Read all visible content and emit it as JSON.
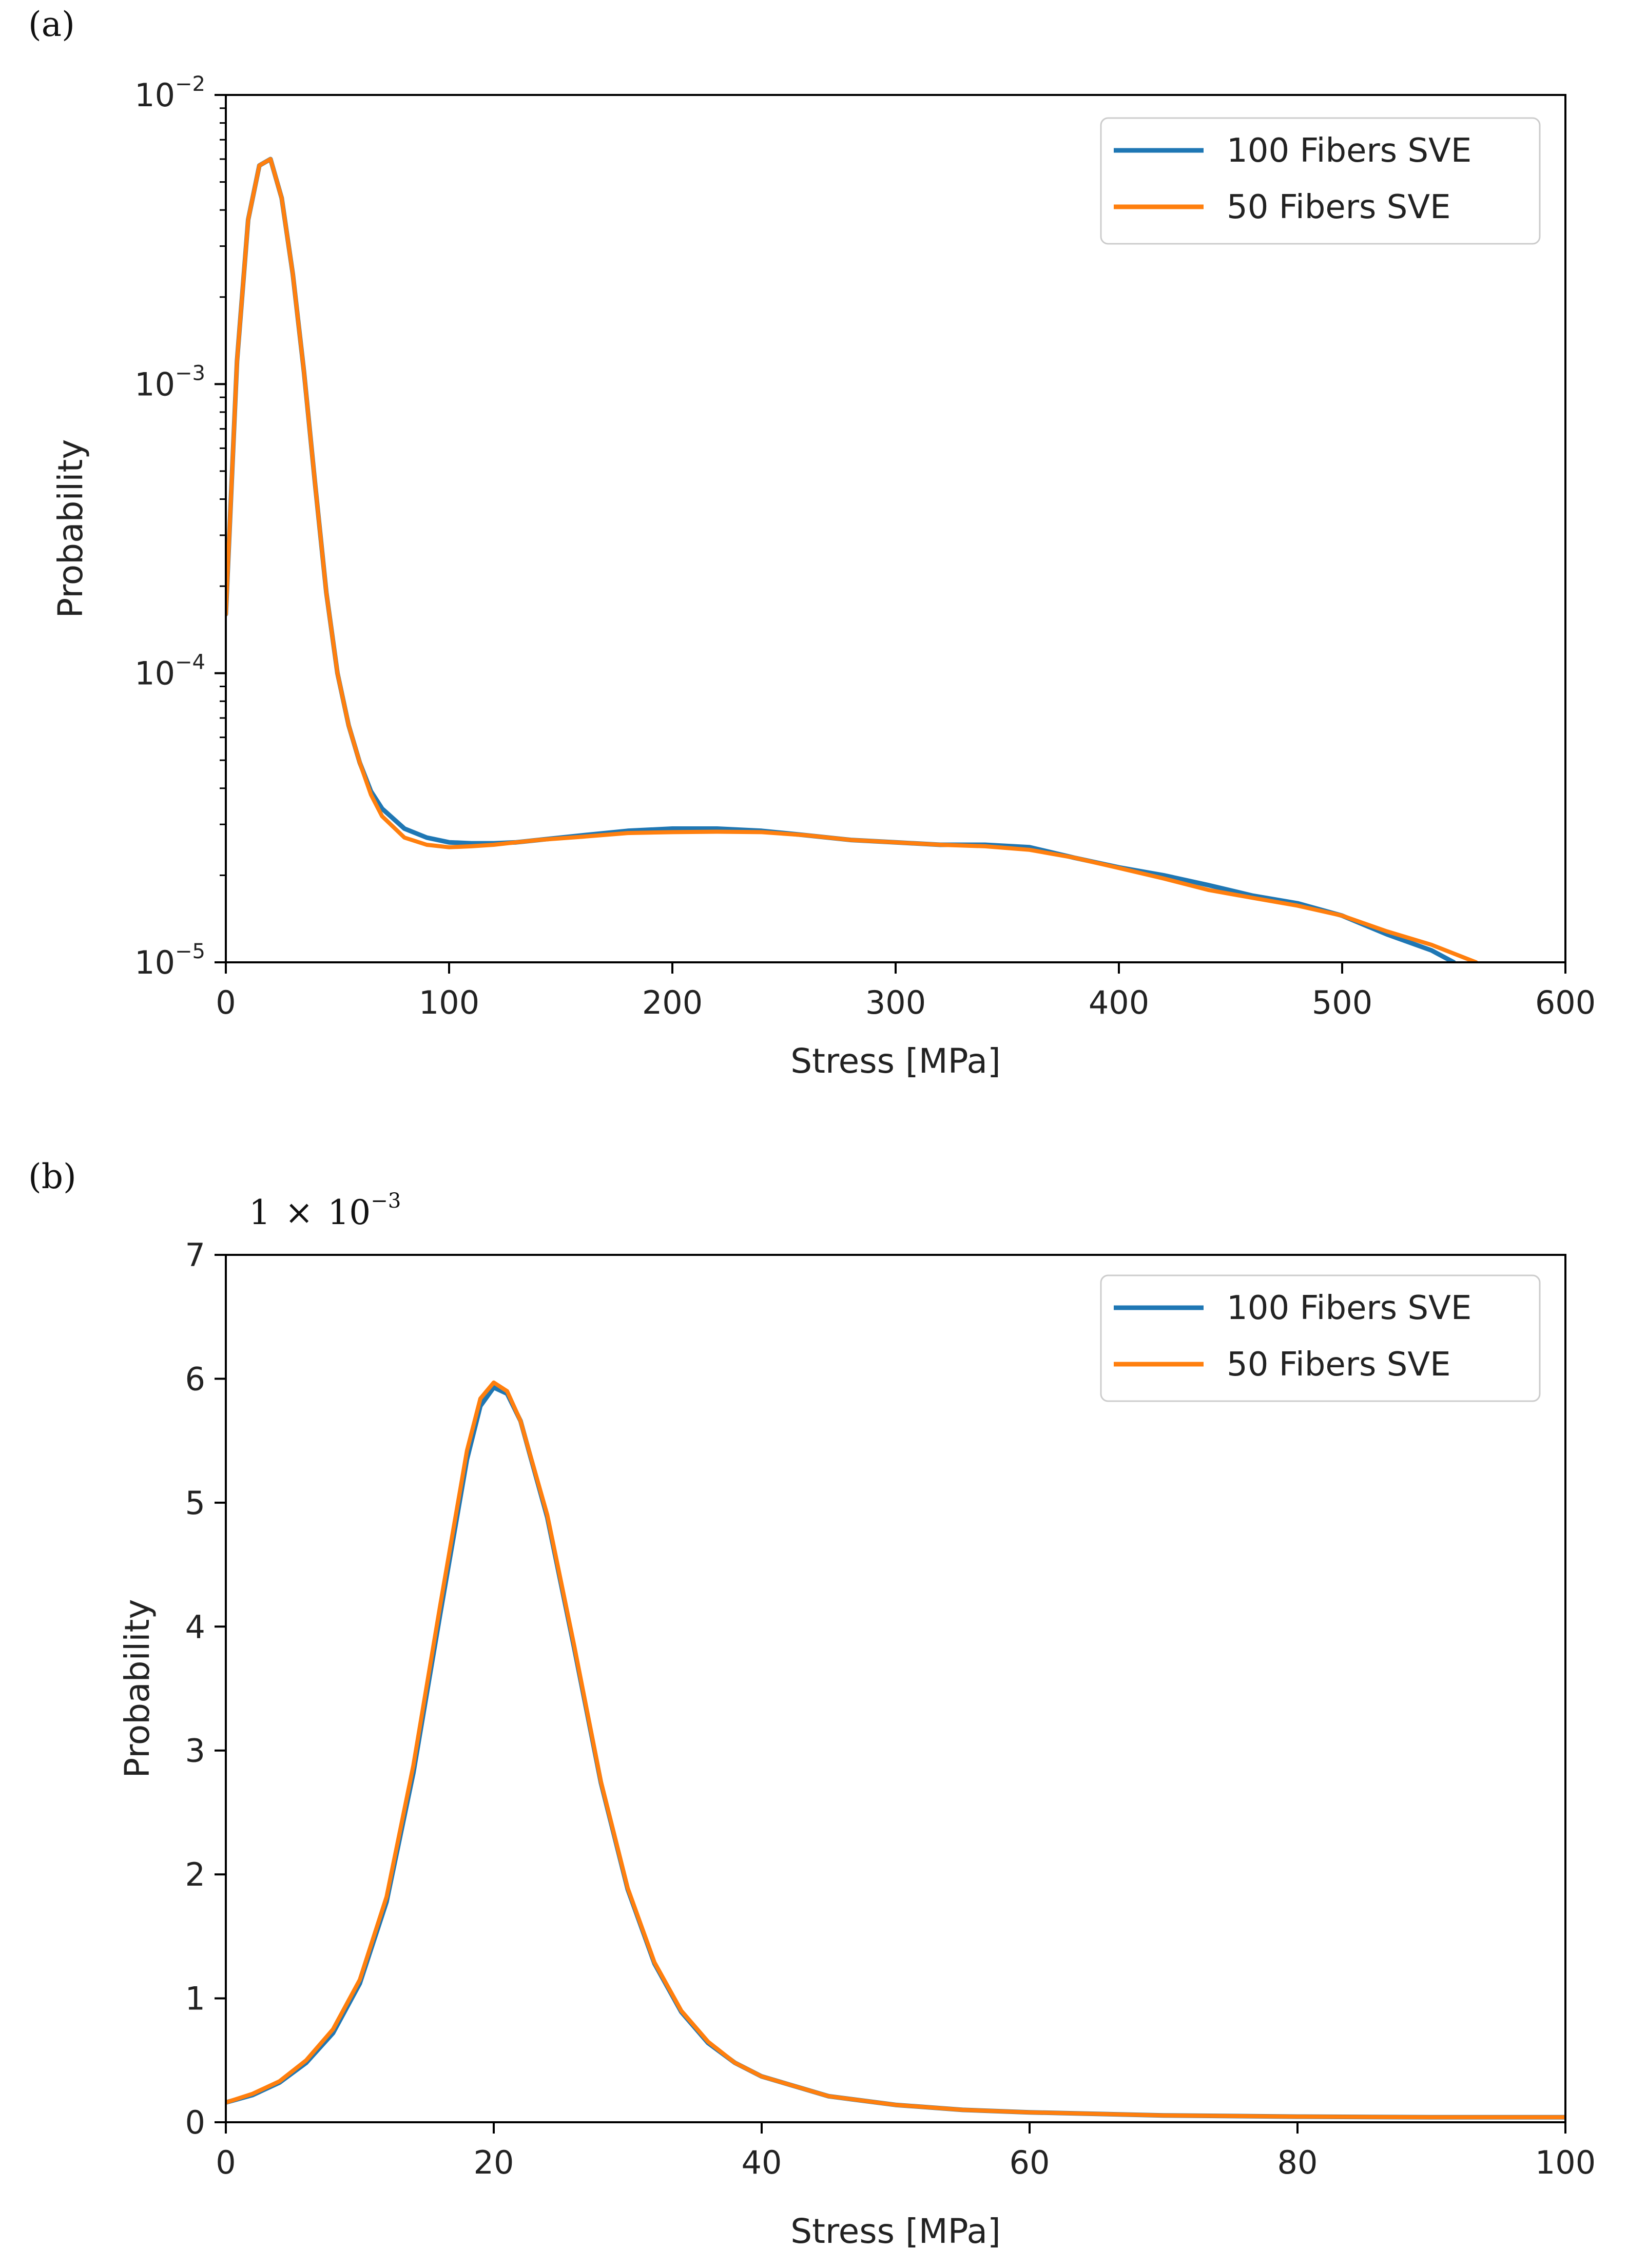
{
  "colors": {
    "series_100": "#1f77b4",
    "series_50": "#ff7f0e",
    "axis": "#000000"
  },
  "chart_data": [
    {
      "panel_label": "(a)",
      "type": "line",
      "xlabel": "Stress [MPa]",
      "ylabel": "Probability",
      "xlim": [
        0,
        600
      ],
      "yscale": "log",
      "ylim": [
        1e-05,
        0.01
      ],
      "xticks": [
        0,
        100,
        200,
        300,
        400,
        500,
        600
      ],
      "xtick_labels": [
        "0",
        "100",
        "200",
        "300",
        "400",
        "500",
        "600"
      ],
      "yticks": [
        1e-05,
        0.0001,
        0.001,
        0.01
      ],
      "ytick_labels": [
        {
          "base": "10",
          "exp": "−5"
        },
        {
          "base": "10",
          "exp": "−4"
        },
        {
          "base": "10",
          "exp": "−3"
        },
        {
          "base": "10",
          "exp": "−2"
        }
      ],
      "legend": {
        "placement": "top-right",
        "entries": [
          "100 Fibers SVE",
          "50 Fibers SVE"
        ]
      },
      "grid": false,
      "series": [
        {
          "name": "100 Fibers SVE",
          "x": [
            0,
            5,
            10,
            15,
            20,
            25,
            30,
            35,
            40,
            45,
            50,
            55,
            60,
            65,
            70,
            80,
            90,
            100,
            110,
            120,
            130,
            140,
            160,
            180,
            200,
            220,
            240,
            260,
            280,
            300,
            320,
            340,
            360,
            380,
            400,
            420,
            440,
            460,
            480,
            500,
            520,
            540,
            550
          ],
          "y": [
            0.00016,
            0.0012,
            0.0037,
            0.0057,
            0.006,
            0.0044,
            0.0024,
            0.0011,
            0.00045,
            0.00019,
            0.0001,
            6.6e-05,
            4.9e-05,
            3.9e-05,
            3.4e-05,
            2.9e-05,
            2.7e-05,
            2.6e-05,
            2.58e-05,
            2.58e-05,
            2.6e-05,
            2.65e-05,
            2.75e-05,
            2.85e-05,
            2.9e-05,
            2.9e-05,
            2.85e-05,
            2.75e-05,
            2.65e-05,
            2.6e-05,
            2.55e-05,
            2.55e-05,
            2.5e-05,
            2.3e-05,
            2.13e-05,
            2e-05,
            1.85e-05,
            1.7e-05,
            1.6e-05,
            1.45e-05,
            1.25e-05,
            1.1e-05,
            1e-05
          ]
        },
        {
          "name": "50 Fibers SVE",
          "x": [
            0,
            5,
            10,
            15,
            20,
            25,
            30,
            35,
            40,
            45,
            50,
            55,
            60,
            65,
            70,
            80,
            90,
            100,
            110,
            120,
            130,
            140,
            160,
            180,
            200,
            220,
            240,
            260,
            280,
            300,
            320,
            340,
            360,
            380,
            400,
            420,
            440,
            460,
            480,
            500,
            520,
            540,
            560
          ],
          "y": [
            0.00016,
            0.0012,
            0.0037,
            0.0057,
            0.006,
            0.0044,
            0.0024,
            0.0011,
            0.00045,
            0.00019,
            0.0001,
            6.6e-05,
            4.9e-05,
            3.8e-05,
            3.2e-05,
            2.7e-05,
            2.55e-05,
            2.5e-05,
            2.52e-05,
            2.55e-05,
            2.6e-05,
            2.65e-05,
            2.72e-05,
            2.8e-05,
            2.82e-05,
            2.83e-05,
            2.82e-05,
            2.75e-05,
            2.65e-05,
            2.6e-05,
            2.55e-05,
            2.52e-05,
            2.45e-05,
            2.3e-05,
            2.12e-05,
            1.95e-05,
            1.78e-05,
            1.67e-05,
            1.57e-05,
            1.45e-05,
            1.28e-05,
            1.15e-05,
            1e-05
          ]
        }
      ]
    },
    {
      "panel_label": "(b)",
      "type": "line",
      "xlabel": "Stress [MPa]",
      "ylabel": "Probability",
      "xlim": [
        0,
        100
      ],
      "ylim": [
        0,
        7
      ],
      "y_multiplier": {
        "coef": "1",
        "times": "×",
        "base": "10",
        "exp": "−3"
      },
      "xticks": [
        0,
        20,
        40,
        60,
        80,
        100
      ],
      "xtick_labels": [
        "0",
        "20",
        "40",
        "60",
        "80",
        "100"
      ],
      "yticks": [
        0,
        1,
        2,
        3,
        4,
        5,
        6,
        7
      ],
      "ytick_labels": [
        "0",
        "1",
        "2",
        "3",
        "4",
        "5",
        "6",
        "7"
      ],
      "legend": {
        "placement": "top-right",
        "entries": [
          "100 Fibers SVE",
          "50 Fibers SVE"
        ]
      },
      "grid": false,
      "series": [
        {
          "name": "100 Fibers SVE",
          "x": [
            0,
            2,
            4,
            6,
            8,
            10,
            12,
            14,
            16,
            18,
            19,
            20,
            21,
            22,
            24,
            26,
            28,
            30,
            32,
            34,
            36,
            38,
            40,
            45,
            50,
            55,
            60,
            70,
            80,
            90,
            100
          ],
          "y": [
            0.16,
            0.22,
            0.32,
            0.48,
            0.72,
            1.12,
            1.78,
            2.82,
            4.1,
            5.35,
            5.78,
            5.93,
            5.88,
            5.66,
            4.88,
            3.83,
            2.74,
            1.88,
            1.28,
            0.89,
            0.64,
            0.48,
            0.37,
            0.21,
            0.14,
            0.1,
            0.08,
            0.055,
            0.045,
            0.04,
            0.04
          ]
        },
        {
          "name": "50 Fibers SVE",
          "x": [
            0,
            2,
            4,
            6,
            8,
            10,
            12,
            14,
            16,
            18,
            19,
            20,
            21,
            22,
            24,
            26,
            28,
            30,
            32,
            34,
            36,
            38,
            40,
            45,
            50,
            55,
            60,
            70,
            80,
            90,
            100
          ],
          "y": [
            0.16,
            0.23,
            0.33,
            0.5,
            0.75,
            1.15,
            1.82,
            2.88,
            4.17,
            5.42,
            5.84,
            5.97,
            5.9,
            5.66,
            4.9,
            3.85,
            2.75,
            1.89,
            1.29,
            0.9,
            0.65,
            0.48,
            0.37,
            0.21,
            0.14,
            0.1,
            0.08,
            0.055,
            0.045,
            0.04,
            0.04
          ]
        }
      ]
    }
  ]
}
